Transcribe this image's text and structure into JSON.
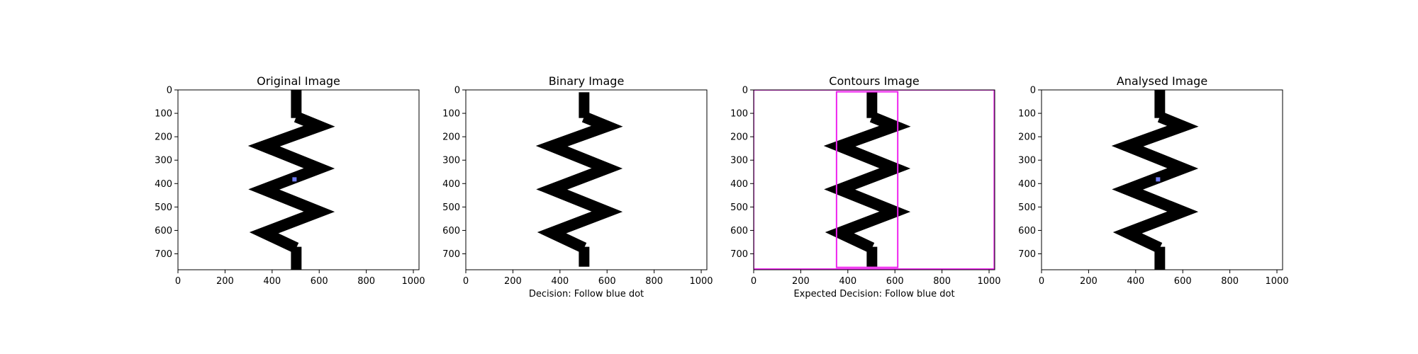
{
  "chart_data": [
    {
      "type": "image",
      "title": "Original Image",
      "xlabel": "",
      "xticks": [
        0,
        200,
        400,
        600,
        800,
        1000
      ],
      "yticks": [
        0,
        100,
        200,
        300,
        400,
        500,
        600,
        700
      ],
      "xlim": [
        0,
        1024
      ],
      "ylim": [
        768,
        0
      ],
      "shape": "zigzag",
      "cap_top": [
        480,
        0,
        525,
        120
      ],
      "zigzag_points": [
        [
          600,
          155
        ],
        [
          365,
          240
        ],
        [
          600,
          335
        ],
        [
          365,
          425
        ],
        [
          600,
          520
        ],
        [
          365,
          610
        ]
      ],
      "cap_bottom": [
        480,
        670,
        525,
        768
      ],
      "shape_color": "#000000",
      "annotations": [
        {
          "type": "dot",
          "x": 495,
          "y": 382,
          "color": "#6f7cf5"
        }
      ]
    },
    {
      "type": "image",
      "title": "Binary Image",
      "xlabel": "Decision: Follow blue dot",
      "xticks": [
        0,
        200,
        400,
        600,
        800,
        1000
      ],
      "yticks": [
        0,
        100,
        200,
        300,
        400,
        500,
        600,
        700
      ],
      "xlim": [
        0,
        1024
      ],
      "ylim": [
        768,
        0
      ],
      "shape": "zigzag",
      "cap_top": [
        480,
        10,
        525,
        120
      ],
      "zigzag_points": [
        [
          600,
          155
        ],
        [
          365,
          240
        ],
        [
          600,
          335
        ],
        [
          365,
          425
        ],
        [
          600,
          520
        ],
        [
          365,
          610
        ]
      ],
      "cap_bottom": [
        480,
        670,
        525,
        755
      ],
      "shape_color": "#000000",
      "annotations": []
    },
    {
      "type": "image",
      "title": "Contours Image",
      "xlabel": "Expected Decision: Follow blue dot",
      "xticks": [
        0,
        200,
        400,
        600,
        800,
        1000
      ],
      "yticks": [
        0,
        100,
        200,
        300,
        400,
        500,
        600,
        700
      ],
      "xlim": [
        0,
        1024
      ],
      "ylim": [
        768,
        0
      ],
      "shape": "zigzag",
      "cap_top": [
        480,
        10,
        525,
        120
      ],
      "zigzag_points": [
        [
          600,
          155
        ],
        [
          365,
          240
        ],
        [
          600,
          335
        ],
        [
          365,
          425
        ],
        [
          600,
          520
        ],
        [
          365,
          610
        ]
      ],
      "cap_bottom": [
        480,
        670,
        525,
        755
      ],
      "shape_color": "#000000",
      "annotations": [
        {
          "type": "rect",
          "x0": 0,
          "y0": 0,
          "x1": 1022,
          "y1": 765,
          "color": "#ee22ee"
        },
        {
          "type": "rect",
          "x0": 352,
          "y0": 8,
          "x1": 612,
          "y1": 758,
          "color": "#ee22ee"
        }
      ]
    },
    {
      "type": "image",
      "title": "Analysed Image",
      "xlabel": "",
      "xticks": [
        0,
        200,
        400,
        600,
        800,
        1000
      ],
      "yticks": [
        0,
        100,
        200,
        300,
        400,
        500,
        600,
        700
      ],
      "xlim": [
        0,
        1024
      ],
      "ylim": [
        768,
        0
      ],
      "shape": "zigzag",
      "cap_top": [
        480,
        0,
        525,
        120
      ],
      "zigzag_points": [
        [
          600,
          155
        ],
        [
          365,
          240
        ],
        [
          600,
          335
        ],
        [
          365,
          425
        ],
        [
          600,
          520
        ],
        [
          365,
          610
        ]
      ],
      "cap_bottom": [
        480,
        670,
        525,
        768
      ],
      "shape_color": "#000000",
      "annotations": [
        {
          "type": "dot",
          "x": 495,
          "y": 382,
          "color": "#6f7cf5"
        }
      ]
    }
  ]
}
